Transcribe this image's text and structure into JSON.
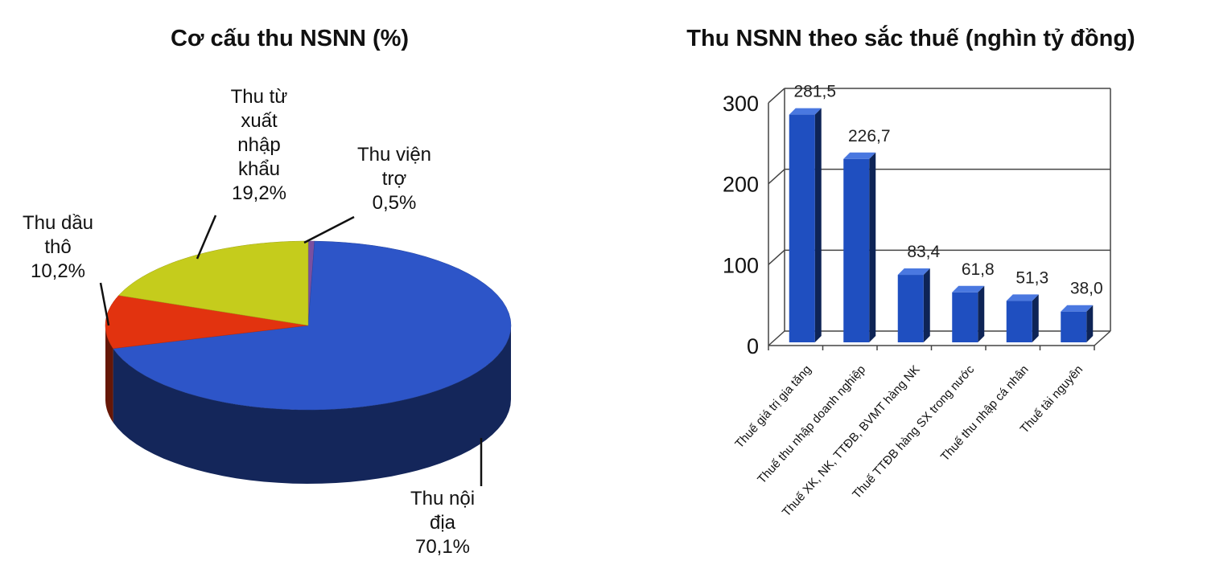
{
  "chart_data": [
    {
      "type": "pie",
      "title": "Cơ cấu thu NSNN (%)",
      "slices": [
        {
          "label": [
            "Thu viện",
            "trợ",
            "0,5%"
          ],
          "value": 0.5,
          "color": "#7a4fa0"
        },
        {
          "label": [
            "Thu nội",
            "địa",
            "70,1%"
          ],
          "value": 70.1,
          "color": "#2d55c8"
        },
        {
          "label": [
            "Thu dầu",
            "thô",
            "10,2%"
          ],
          "value": 10.2,
          "color": "#e2330f"
        },
        {
          "label": [
            "Thu từ",
            "xuất",
            "nhập",
            "khẩu",
            "19,2%"
          ],
          "value": 19.2,
          "color": "#c5cc1c"
        }
      ],
      "style": "3d"
    },
    {
      "type": "bar",
      "title": "Thu NSNN theo sắc thuế (nghìn tỷ đồng)",
      "categories": [
        "Thuế giá trị gia tăng",
        "Thuế thu nhập doanh nghiệp",
        "Thuế XK, NK, TTĐB, BVMT hàng NK",
        "Thuế TTĐB hàng SX trong nước",
        "Thuế thu nhập cá nhân",
        "Thuế tài nguyên"
      ],
      "values": [
        281.5,
        226.7,
        83.4,
        61.8,
        51.3,
        38.0
      ],
      "value_labels": [
        "281,5",
        "226,7",
        "83,4",
        "61,8",
        "51,3",
        "38,0"
      ],
      "yticks": [
        "0",
        "100",
        "200",
        "300"
      ],
      "ylim": [
        0,
        300
      ],
      "grid": true,
      "color": "#1f4fc0",
      "style": "3d"
    }
  ]
}
